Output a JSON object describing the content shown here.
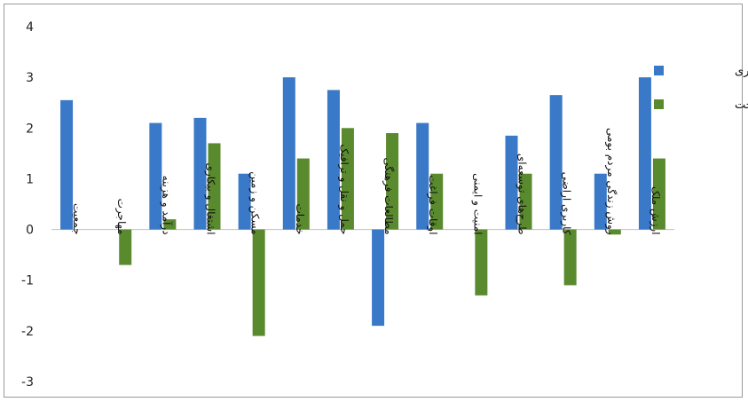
{
  "chart_data": {
    "type": "bar",
    "categories": [
      "جمعیت",
      "مهاجرت",
      "درآمد و هزینه",
      "اشتغال و بیکاری",
      "مسکن و زمین",
      "خدمات",
      "حمل و نقل و ترافیک",
      "مطالعات فرهنگی",
      "اوقات فراغت",
      "امنیت و ایمنی",
      "طرح‌های توسعه‌ای",
      "کاربری اراضی",
      "روش زندگی مردم بومی",
      "ارزش ملک"
    ],
    "series": [
      {
        "name": "بهره برداری",
        "color": "#3a78c8",
        "values": [
          2.55,
          0,
          2.1,
          2.2,
          1.1,
          3.0,
          2.75,
          -1.9,
          2.1,
          0,
          1.85,
          2.65,
          1.1,
          3.0
        ]
      },
      {
        "name": "ساخت",
        "color": "#5a8a2e",
        "values": [
          0,
          -0.7,
          0.2,
          1.7,
          -2.1,
          1.4,
          2.0,
          1.9,
          1.1,
          -1.3,
          1.1,
          -1.1,
          -0.1,
          1.4
        ]
      }
    ],
    "yticks": [
      "4",
      "3",
      "2",
      "1",
      "0",
      "-1",
      "-2",
      "-3"
    ],
    "ylim": [
      -3,
      4
    ],
    "grid": false,
    "legend_position": "right"
  }
}
